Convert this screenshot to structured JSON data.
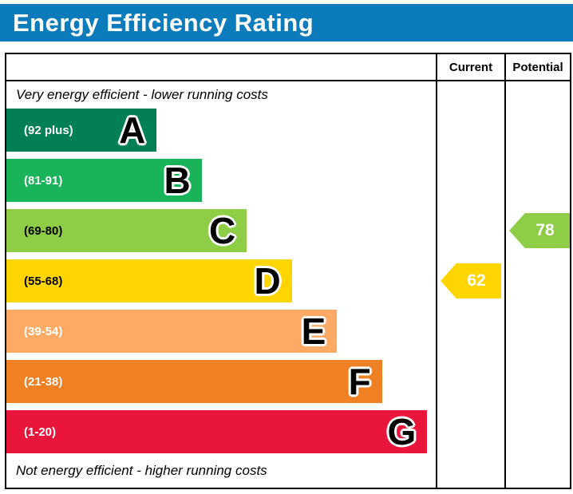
{
  "title": "Energy Efficiency Rating",
  "columns": {
    "current": "Current",
    "potential": "Potential"
  },
  "captions": {
    "top": "Very energy efficient - lower running costs",
    "bottom": "Not energy efficient - higher running costs"
  },
  "theme": {
    "title_bg": "#0c7bbb",
    "title_color": "#ffffff",
    "border_color": "#000000"
  },
  "chart_data": {
    "type": "bar",
    "subtype": "energy-efficiency-rating-epc",
    "title": "Energy Efficiency Rating",
    "bands": [
      {
        "letter": "A",
        "range": "(92 plus)",
        "min": 92,
        "max": 100,
        "color": "#008054",
        "label_color": "#ffffff",
        "width_pct": 35
      },
      {
        "letter": "B",
        "range": "(81-91)",
        "min": 81,
        "max": 91,
        "color": "#19b459",
        "label_color": "#ffffff",
        "width_pct": 45.5
      },
      {
        "letter": "C",
        "range": "(69-80)",
        "min": 69,
        "max": 80,
        "color": "#8dce46",
        "label_color": "#000000",
        "width_pct": 56
      },
      {
        "letter": "D",
        "range": "(55-68)",
        "min": 55,
        "max": 68,
        "color": "#ffd500",
        "label_color": "#000000",
        "width_pct": 66.5
      },
      {
        "letter": "E",
        "range": "(39-54)",
        "min": 39,
        "max": 54,
        "color": "#fcaa65",
        "label_color": "#ffffff",
        "width_pct": 77
      },
      {
        "letter": "F",
        "range": "(21-38)",
        "min": 21,
        "max": 38,
        "color": "#ef8023",
        "label_color": "#ffffff",
        "width_pct": 87.5
      },
      {
        "letter": "G",
        "range": "(1-20)",
        "min": 1,
        "max": 20,
        "color": "#e9153b",
        "label_color": "#ffffff",
        "width_pct": 98
      }
    ],
    "current": {
      "value": "62",
      "band": "D",
      "color": "#ffd500"
    },
    "potential": {
      "value": "78",
      "band": "C",
      "color": "#8dce46"
    }
  }
}
